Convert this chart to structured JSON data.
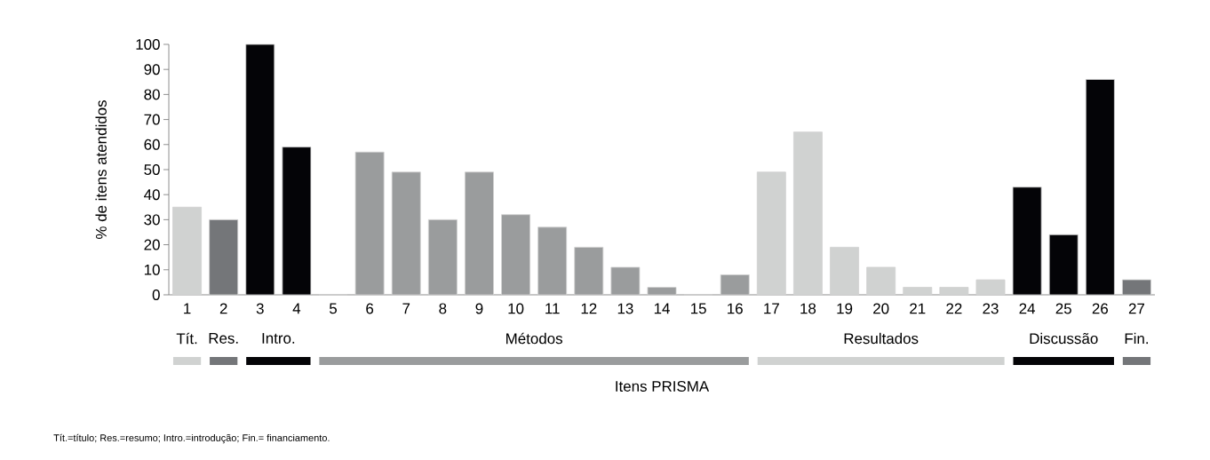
{
  "chart_data": {
    "type": "bar",
    "xlabel": "Itens PRISMA",
    "ylabel": "% de itens atendidos",
    "categories": [
      "1",
      "2",
      "3",
      "4",
      "5",
      "6",
      "7",
      "8",
      "9",
      "10",
      "11",
      "12",
      "13",
      "14",
      "15",
      "16",
      "17",
      "18",
      "19",
      "20",
      "21",
      "22",
      "23",
      "24",
      "25",
      "26",
      "27"
    ],
    "values": [
      35,
      30,
      100,
      59,
      0,
      57,
      49,
      30,
      49,
      32,
      27,
      19,
      11,
      3,
      0,
      8,
      49,
      65,
      19,
      11,
      3,
      3,
      6,
      43,
      24,
      86,
      6
    ],
    "colors": [
      "#d0d2d1",
      "#747679",
      "#040407",
      "#040407",
      "#9a9c9d",
      "#9a9c9d",
      "#9a9c9d",
      "#9a9c9d",
      "#9a9c9d",
      "#9a9c9d",
      "#9a9c9d",
      "#9a9c9d",
      "#9a9c9d",
      "#9a9c9d",
      "#9a9c9d",
      "#9a9c9d",
      "#d0d2d1",
      "#d0d2d1",
      "#d0d2d1",
      "#d0d2d1",
      "#d0d2d1",
      "#d0d2d1",
      "#d0d2d1",
      "#040407",
      "#040407",
      "#040407",
      "#747679"
    ],
    "ylim": [
      0,
      100
    ],
    "yticks": [
      0,
      10,
      20,
      30,
      40,
      50,
      60,
      70,
      80,
      90,
      100
    ],
    "annotations": [
      "Tít.",
      "Res.",
      "Intro.",
      "Métodos",
      "Resultados",
      "Discussão",
      "Fin.",
      "Tít.=título; Res.=resumo; Intro.=introdução; Fin.= financiamento."
    ]
  }
}
